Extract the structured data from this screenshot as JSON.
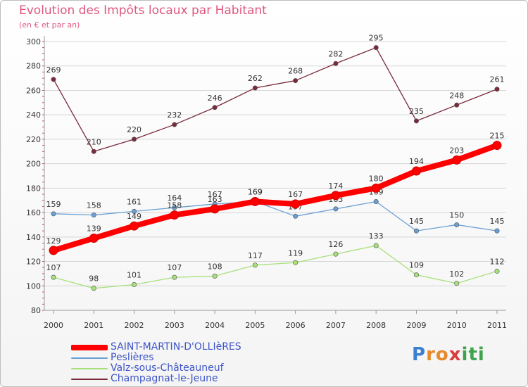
{
  "title": "Evolution des Impôts locaux par Habitant",
  "subtitle": "(en € et par an)",
  "logo": {
    "letters": [
      "P",
      "r",
      "o",
      "x",
      "i",
      "t",
      "i"
    ],
    "colors": [
      "#3a7fd0",
      "#e8892b",
      "#e8892b",
      "#d93a3a",
      "#3fa34d",
      "#3fa34d",
      "#3fa34d"
    ]
  },
  "chart_data": {
    "type": "line",
    "categories": [
      "2000",
      "2001",
      "2002",
      "2003",
      "2004",
      "2005",
      "2006",
      "2007",
      "2008",
      "2009",
      "2010",
      "2011"
    ],
    "ylim": [
      80,
      300
    ],
    "yticks": [
      "80",
      "100",
      "120",
      "140",
      "160",
      "180",
      "200",
      "220",
      "240",
      "260",
      "280",
      "300"
    ],
    "grid": true,
    "legend_position": "bottom-left",
    "series": [
      {
        "name": "SAINT-MARTIN-D'OLLIèRES",
        "color": "#ff0000",
        "values": [
          129,
          139,
          149,
          158,
          163,
          169,
          167,
          174,
          180,
          194,
          203,
          215
        ]
      },
      {
        "name": "Peslières",
        "color": "#6a9fd4",
        "values": [
          159,
          158,
          161,
          164,
          167,
          169,
          157,
          163,
          169,
          145,
          150,
          145
        ]
      },
      {
        "name": "Valz-sous-Châteauneuf",
        "color": "#a8e07a",
        "values": [
          107,
          98,
          101,
          107,
          108,
          117,
          119,
          126,
          133,
          109,
          102,
          112
        ]
      },
      {
        "name": "Champagnat-le-Jeune",
        "color": "#7a2a3a",
        "values": [
          269,
          210,
          220,
          232,
          246,
          262,
          268,
          282,
          295,
          235,
          248,
          261
        ]
      }
    ]
  }
}
